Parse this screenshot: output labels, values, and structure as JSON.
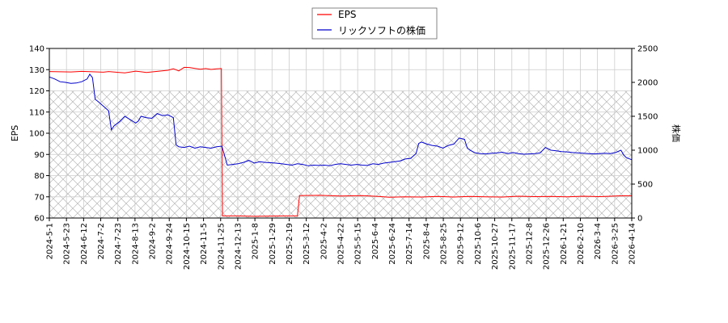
{
  "chart_data": {
    "type": "line",
    "legend_position": "top-center",
    "grid": true,
    "shaded_band": {
      "y_from": 60,
      "y_to": 120,
      "axis": "left",
      "pattern": "crosshatch"
    },
    "x_tick_labels": [
      "2024-5-1",
      "2024-5-23",
      "2024-6-12",
      "2024-7-2",
      "2024-7-23",
      "2024-8-13",
      "2024-9-2",
      "2024-9-24",
      "2024-10-15",
      "2024-11-5",
      "2024-11-25",
      "2024-12-13",
      "2025-1-8",
      "2025-1-29",
      "2025-2-19",
      "2025-3-12",
      "2025-4-2",
      "2025-4-22",
      "2025-5-15",
      "2025-6-4",
      "2025-6-24",
      "2025-7-14",
      "2025-8-4",
      "2025-8-25",
      "2025-9-12",
      "2025-10-6",
      "2025-10-27",
      "2025-11-17",
      "2025-12-8",
      "2025-12-26",
      "2026-1-21",
      "2026-2-10",
      "2026-3-4",
      "2026-3-25",
      "2026-4-14"
    ],
    "y_left": {
      "label": "EPS",
      "min": 60,
      "max": 140,
      "ticks": [
        60,
        70,
        80,
        90,
        100,
        110,
        120,
        130,
        140
      ]
    },
    "y_right": {
      "label": "株価",
      "min": 0,
      "max": 2500,
      "ticks": [
        0,
        500,
        1000,
        1500,
        2000,
        2500
      ]
    },
    "series": [
      {
        "name": "EPS",
        "axis": "left",
        "color": "#ff0000",
        "points": [
          [
            0,
            129.1
          ],
          [
            2,
            129.0
          ],
          [
            4,
            128.9
          ],
          [
            6,
            129.2
          ],
          [
            8,
            129.0
          ],
          [
            10,
            128.8
          ],
          [
            11,
            129.1
          ],
          [
            13,
            128.7
          ],
          [
            14,
            128.5
          ],
          [
            16,
            129.3
          ],
          [
            17,
            129.0
          ],
          [
            18,
            128.7
          ],
          [
            20,
            129.2
          ],
          [
            22,
            129.7
          ],
          [
            23,
            130.4
          ],
          [
            24,
            129.4
          ],
          [
            25,
            131.1
          ],
          [
            26,
            131.0
          ],
          [
            27,
            130.6
          ],
          [
            28,
            130.2
          ],
          [
            29,
            130.5
          ],
          [
            30,
            130.1
          ],
          [
            31,
            130.4
          ],
          [
            31.9,
            130.5
          ],
          [
            32.1,
            61.0
          ],
          [
            35,
            61.0
          ],
          [
            38,
            60.8
          ],
          [
            41,
            60.9
          ],
          [
            44,
            61.0
          ],
          [
            46,
            61.0
          ],
          [
            46.4,
            70.6
          ],
          [
            50,
            70.7
          ],
          [
            54,
            70.4
          ],
          [
            58,
            70.6
          ],
          [
            61,
            70.2
          ],
          [
            63,
            69.8
          ],
          [
            66,
            70.0
          ],
          [
            69,
            69.9
          ],
          [
            72,
            70.2
          ],
          [
            75,
            69.9
          ],
          [
            78,
            70.2
          ],
          [
            81,
            70.0
          ],
          [
            84,
            69.9
          ],
          [
            87,
            70.3
          ],
          [
            90,
            70.1
          ],
          [
            93,
            70.2
          ],
          [
            96,
            70.0
          ],
          [
            99,
            70.3
          ],
          [
            102,
            70.1
          ],
          [
            105,
            70.4
          ],
          [
            108,
            70.5
          ]
        ]
      },
      {
        "name": "リックソフトの株価",
        "axis": "right",
        "color": "#0000cc",
        "points": [
          [
            0,
            2080
          ],
          [
            1,
            2050
          ],
          [
            2,
            2010
          ],
          [
            3,
            2000
          ],
          [
            4,
            1985
          ],
          [
            5,
            1990
          ],
          [
            6,
            2010
          ],
          [
            7,
            2050
          ],
          [
            7.5,
            2120
          ],
          [
            8,
            2070
          ],
          [
            8.5,
            1750
          ],
          [
            9,
            1720
          ],
          [
            10,
            1650
          ],
          [
            11,
            1580
          ],
          [
            11.5,
            1300
          ],
          [
            12,
            1360
          ],
          [
            13,
            1420
          ],
          [
            14,
            1500
          ],
          [
            15,
            1450
          ],
          [
            16,
            1400
          ],
          [
            16.5,
            1430
          ],
          [
            17,
            1500
          ],
          [
            18,
            1480
          ],
          [
            19,
            1470
          ],
          [
            20,
            1540
          ],
          [
            21,
            1510
          ],
          [
            22,
            1520
          ],
          [
            23,
            1480
          ],
          [
            23.5,
            1080
          ],
          [
            24,
            1050
          ],
          [
            25,
            1040
          ],
          [
            26,
            1060
          ],
          [
            27,
            1030
          ],
          [
            28,
            1050
          ],
          [
            29,
            1040
          ],
          [
            30,
            1030
          ],
          [
            31,
            1050
          ],
          [
            32,
            1060
          ],
          [
            33,
            780
          ],
          [
            34,
            790
          ],
          [
            35,
            800
          ],
          [
            36,
            820
          ],
          [
            37,
            850
          ],
          [
            38,
            810
          ],
          [
            39,
            830
          ],
          [
            40,
            820
          ],
          [
            41,
            815
          ],
          [
            42,
            810
          ],
          [
            43,
            800
          ],
          [
            44,
            790
          ],
          [
            45,
            780
          ],
          [
            46,
            800
          ],
          [
            47,
            790
          ],
          [
            48,
            770
          ],
          [
            49,
            780
          ],
          [
            50,
            775
          ],
          [
            51,
            780
          ],
          [
            52,
            770
          ],
          [
            53,
            790
          ],
          [
            54,
            800
          ],
          [
            55,
            790
          ],
          [
            56,
            780
          ],
          [
            57,
            790
          ],
          [
            58,
            780
          ],
          [
            59,
            775
          ],
          [
            60,
            800
          ],
          [
            61,
            790
          ],
          [
            62,
            810
          ],
          [
            63,
            820
          ],
          [
            64,
            830
          ],
          [
            65,
            840
          ],
          [
            66,
            870
          ],
          [
            67,
            880
          ],
          [
            68,
            950
          ],
          [
            68.5,
            1100
          ],
          [
            69,
            1120
          ],
          [
            70,
            1090
          ],
          [
            71,
            1070
          ],
          [
            72,
            1060
          ],
          [
            73,
            1030
          ],
          [
            74,
            1070
          ],
          [
            75,
            1090
          ],
          [
            76,
            1180
          ],
          [
            77,
            1160
          ],
          [
            77.5,
            1030
          ],
          [
            78,
            1000
          ],
          [
            79,
            960
          ],
          [
            80,
            950
          ],
          [
            81,
            945
          ],
          [
            82,
            955
          ],
          [
            83,
            960
          ],
          [
            84,
            970
          ],
          [
            85,
            950
          ],
          [
            86,
            965
          ],
          [
            87,
            950
          ],
          [
            88,
            940
          ],
          [
            89,
            945
          ],
          [
            90,
            950
          ],
          [
            91,
            960
          ],
          [
            92,
            1040
          ],
          [
            93,
            1000
          ],
          [
            94,
            990
          ],
          [
            95,
            980
          ],
          [
            96,
            975
          ],
          [
            97,
            965
          ],
          [
            98,
            960
          ],
          [
            99,
            955
          ],
          [
            100,
            950
          ],
          [
            101,
            945
          ],
          [
            102,
            950
          ],
          [
            103,
            955
          ],
          [
            104,
            950
          ],
          [
            105,
            965
          ],
          [
            106,
            1000
          ],
          [
            106.5,
            930
          ],
          [
            107,
            890
          ],
          [
            108,
            860
          ]
        ]
      }
    ]
  }
}
